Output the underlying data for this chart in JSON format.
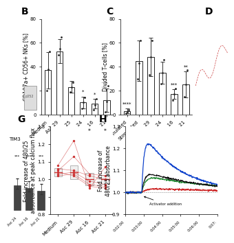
{
  "panel_B": {
    "label": "B",
    "categories": [
      "Medium",
      "Asc 29",
      "Asc 25",
      "Asc 24",
      "Asc 16",
      "Asc 21"
    ],
    "means": [
      37,
      53,
      23,
      10,
      9,
      12
    ],
    "errors": [
      15,
      10,
      5,
      5,
      4,
      10
    ],
    "ylabel": "CD107a+ CD56+ NKs [%]",
    "ylim": [
      0,
      80
    ],
    "yticks": [
      0,
      20,
      40,
      60,
      80
    ],
    "sig": [
      "",
      "",
      "",
      "*",
      "*",
      "*"
    ],
    "dot_data": [
      [
        20,
        38,
        53
      ],
      [
        50,
        55,
        65
      ],
      [
        19,
        23,
        27
      ],
      [
        5,
        10,
        14
      ],
      [
        4,
        8,
        13
      ],
      [
        2,
        11,
        24
      ]
    ]
  },
  "panel_C": {
    "label": "C",
    "categories": [
      "Unstimulated",
      "Stimulated",
      "Asc 29",
      "Asc 24",
      "Asc 16",
      "Asc 21"
    ],
    "means": [
      3,
      45,
      48,
      35,
      17,
      25
    ],
    "errors": [
      2,
      17,
      16,
      9,
      4,
      11
    ],
    "ylabel": "Divided T-cells [%]",
    "ylim": [
      0,
      80
    ],
    "yticks": [
      0,
      20,
      40,
      60,
      80
    ],
    "sig": [
      "****",
      "",
      "",
      "",
      "***",
      "**"
    ],
    "dot_data": [
      [
        1,
        2,
        4
      ],
      [
        30,
        43,
        62
      ],
      [
        33,
        48,
        62
      ],
      [
        26,
        35,
        46
      ],
      [
        12,
        17,
        22
      ],
      [
        15,
        25,
        37
      ]
    ]
  },
  "panel_G": {
    "label": "G",
    "categories": [
      "Medium",
      "Asc 29",
      "Asc 16",
      "Asc 21"
    ],
    "means": [
      1.04,
      1.04,
      1.0,
      1.0
    ],
    "errors": [
      0.025,
      0.04,
      0.035,
      0.025
    ],
    "ylabel": "Fold increase of 480/25\nabsorbance at peak calcium flux",
    "ylim": [
      0.8,
      1.3
    ],
    "yticks": [
      0.8,
      0.9,
      1.0,
      1.1,
      1.2,
      1.3
    ],
    "sig": [
      "",
      "",
      "*",
      "*"
    ],
    "connected_lines": [
      [
        1.08,
        1.22,
        0.95,
        1.07
      ],
      [
        1.05,
        1.13,
        1.03,
        1.02
      ],
      [
        1.06,
        1.05,
        1.02,
        1.0
      ],
      [
        1.03,
        1.04,
        0.99,
        0.97
      ],
      [
        1.02,
        1.03,
        0.97,
        0.96
      ],
      [
        1.04,
        1.02,
        0.96,
        0.95
      ]
    ]
  },
  "panel_H": {
    "label": "H",
    "ylabel": "Fold increase of\n480/25 absorbance",
    "ylim": [
      0.9,
      1.3
    ],
    "yticks": [
      0.9,
      1.0,
      1.1,
      1.2,
      1.3
    ],
    "activator_label": "Activator addition",
    "xtick_labels": [
      "0:02:00",
      "0:03:00",
      "0:04:00",
      "0:05:00",
      "0:06:00",
      "0:07:"
    ]
  },
  "left_strip": {
    "tim3_label": "TIM3",
    "bottom_cats": [
      "Asc 24",
      "Asc 16",
      "Asc 21"
    ],
    "bottom_sig": [
      "***",
      "***",
      "***"
    ]
  },
  "bar_color": "#ffffff",
  "bar_edgecolor": "#222222",
  "dot_color": "#222222",
  "background": "#ffffff",
  "panel_label_fontsize": 10,
  "axis_fontsize": 5.5,
  "tick_fontsize": 5,
  "sig_fontsize": 5.5
}
